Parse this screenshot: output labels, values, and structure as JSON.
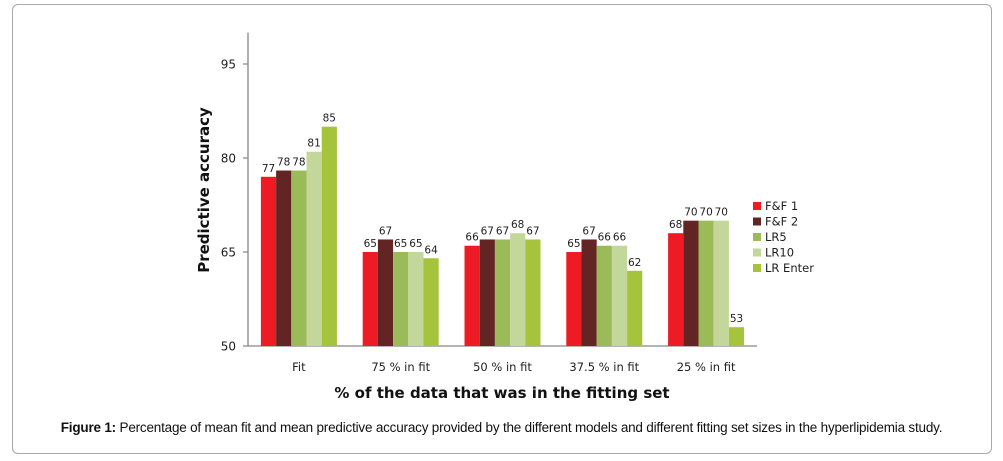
{
  "chart_data": {
    "type": "bar",
    "title": "",
    "xlabel": "% of the data that was in the fitting set",
    "ylabel": "Predictive accuracy",
    "ylim": [
      50,
      100
    ],
    "yticks": [
      50,
      65,
      80,
      95
    ],
    "grid": false,
    "legend_position": "right",
    "categories": [
      "Fit",
      "75 % in fit",
      "50 % in fit",
      "37.5 % in fit",
      "25 % in fit"
    ],
    "series": [
      {
        "name": "F&F 1",
        "color": "#ed1c24",
        "values": [
          77,
          65,
          66,
          65,
          68
        ]
      },
      {
        "name": "F&F 2",
        "color": "#632523",
        "values": [
          78,
          67,
          67,
          67,
          70
        ]
      },
      {
        "name": "LR5",
        "color": "#9bbb59",
        "values": [
          78,
          65,
          67,
          66,
          70
        ]
      },
      {
        "name": "LR10",
        "color": "#c4d79b",
        "values": [
          81,
          65,
          68,
          66,
          70
        ]
      },
      {
        "name": "LR Enter",
        "color": "#a5c33b",
        "values": [
          85,
          64,
          67,
          62,
          53
        ]
      }
    ]
  },
  "caption": {
    "label": "Figure 1:",
    "text": " Percentage of mean fit and mean predictive accuracy provided by the different models and different fitting set sizes in the hyperlipidemia study."
  }
}
